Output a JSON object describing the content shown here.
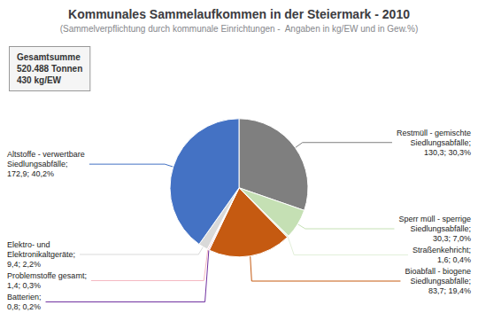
{
  "chart_data": {
    "type": "pie",
    "title": "Kommunales Sammelaufkommen in der Steiermark - 2010",
    "subtitle": "(Sammelverpflichtung durch kommunale Einrichtungen -  Angaben in kg/EW und in Gew.%)",
    "categories": [
      "Restmüll - gemischte\nSiedlungsabfälle;\n130,3; 30,3%",
      "Sperr müll - sperrige\nSiedlungsabfälle;\n30,3; 7,0%",
      "Straßenkehricht;\n1,6; 0,4%",
      "Bioabfall - biogene\nSiedlungsabfälle;\n83,7; 19,4%",
      "Batterien;\n0,8; 0,2%",
      "Problemstoffe gesamt;\n1,4; 0,3%",
      "Elektro- und\nElektronikaltgeräte;\n9,4; 2,2%",
      "Altstoffe - verwertbare\nSiedlungsabfälle;\n172,9; 40,2%"
    ],
    "values": [
      30.3,
      7.0,
      0.4,
      19.4,
      0.2,
      0.3,
      2.2,
      40.2
    ],
    "colors": [
      "#7f7f7f",
      "#c5e0b4",
      "#e2efda",
      "#c55a11",
      "#7030a0",
      "#f4b8c1",
      "#d9d9d9",
      "#4472c4"
    ],
    "annotations": [
      "Gesamtsumme\n520.488 Tonnen\n430 kg/EW"
    ]
  }
}
